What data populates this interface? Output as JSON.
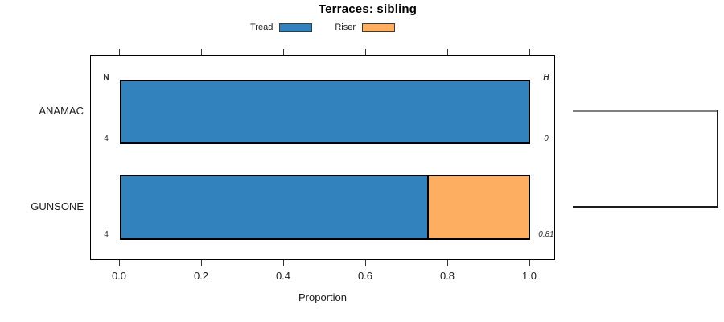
{
  "title": "Terraces: sibling",
  "legend": {
    "items": [
      {
        "label": "Tread",
        "color": "#3182bd"
      },
      {
        "label": "Riser",
        "color": "#fdae61"
      }
    ]
  },
  "chart_data": {
    "type": "bar",
    "orientation": "horizontal",
    "stacked": true,
    "title": "Terraces: sibling",
    "xlabel": "Proportion",
    "xlim": [
      0,
      1
    ],
    "xticks": [
      0.0,
      0.2,
      0.4,
      0.6,
      0.8,
      1.0
    ],
    "xtick_labels": [
      "0.0",
      "0.2",
      "0.4",
      "0.6",
      "0.8",
      "1.0"
    ],
    "categories": [
      "ANAMAC",
      "GUNSONE"
    ],
    "series": [
      {
        "name": "Tread",
        "color": "#3182bd",
        "values": [
          1.0,
          0.75
        ]
      },
      {
        "name": "Riser",
        "color": "#fdae61",
        "values": [
          0.0,
          0.25
        ]
      }
    ],
    "annotations": {
      "left_header": "N",
      "right_header": "H",
      "n_values": [
        "4",
        "4"
      ],
      "h_values": [
        "0",
        "0.81"
      ]
    },
    "dendrogram": {
      "description": "both leaves join at one root on the right edge",
      "leaf_order": [
        "ANAMAC",
        "GUNSONE"
      ],
      "branch_colors": [
        "#808080",
        "#1c1c1c"
      ],
      "root_color": "#1c1c1c"
    },
    "legend_position": "top",
    "grid": false,
    "bar_edge_color": "#000000",
    "box_border_color": "#000000"
  }
}
